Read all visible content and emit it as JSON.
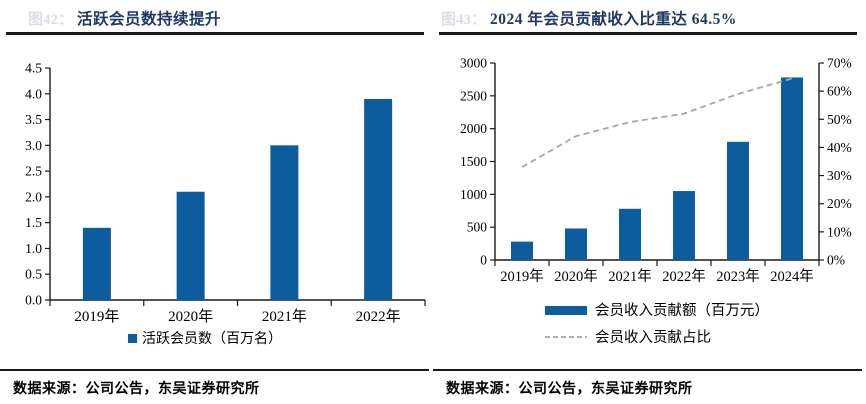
{
  "colors": {
    "bar_blue": "#0D5C9E",
    "dash_gray": "#A6A6A6",
    "axis": "#1a1a1a",
    "title_navy": "#1F3864"
  },
  "left_panel": {
    "fig_label": "图42：",
    "title": "活跃会员数持续提升",
    "source": "数据来源：公司公告，东吴证券研究所"
  },
  "right_panel": {
    "fig_label": "图43：",
    "title": "2024 年会员贡献收入比重达 64.5%",
    "source": "数据来源：公司公告，东吴证券研究所"
  },
  "chart_data": [
    {
      "type": "bar",
      "title": "活跃会员数持续提升",
      "categories": [
        "2019年",
        "2020年",
        "2021年",
        "2022年"
      ],
      "values": [
        1.4,
        2.1,
        3.0,
        3.9
      ],
      "series_name": "活跃会员数（百万名）",
      "xlabel": "",
      "ylabel": "",
      "ylim": [
        0,
        4.5
      ],
      "ytick_step": 0.5,
      "yticks": [
        0.0,
        0.5,
        1.0,
        1.5,
        2.0,
        2.5,
        3.0,
        3.5,
        4.0,
        4.5
      ],
      "grid": false,
      "legend_position": "bottom",
      "legend": [
        {
          "marker": "square",
          "label": "活跃会员数（百万名）"
        }
      ]
    },
    {
      "type": "bar+line",
      "title": "2024 年会员贡献收入比重达 64.5%",
      "categories": [
        "2019年",
        "2020年",
        "2021年",
        "2022年",
        "2023年",
        "2024年"
      ],
      "series": [
        {
          "name": "会员收入贡献额（百万元）",
          "type": "bar",
          "axis": "left",
          "values": [
            280,
            480,
            780,
            1050,
            1800,
            2780
          ]
        },
        {
          "name": "会员收入贡献占比",
          "type": "line",
          "style": "dashed",
          "axis": "right",
          "values_pct": [
            33,
            44,
            49,
            52,
            59,
            64.5
          ]
        }
      ],
      "left_ylim": [
        0,
        3000
      ],
      "left_yticks": [
        0,
        500,
        1000,
        1500,
        2000,
        2500,
        3000
      ],
      "right_ylim_pct": [
        0,
        70
      ],
      "right_yticks_pct": [
        0,
        10,
        20,
        30,
        40,
        50,
        60,
        70
      ],
      "grid": false,
      "legend_position": "bottom"
    }
  ]
}
